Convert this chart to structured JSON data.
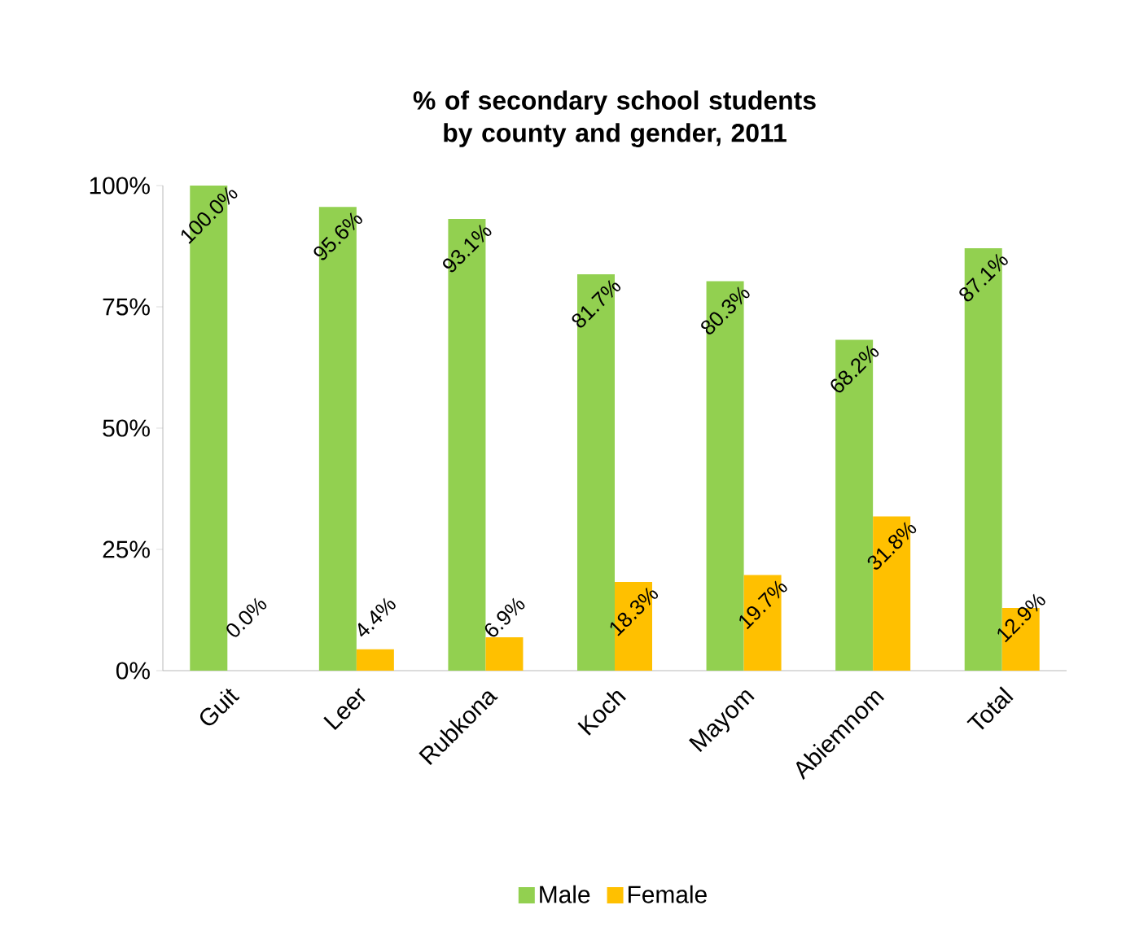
{
  "chart_data": {
    "type": "bar",
    "title": "% of secondary school students by county and gender, 2011",
    "categories": [
      "Guit",
      "Leer",
      "Rubkona",
      "Koch",
      "Mayom",
      "Abiemnom",
      "Total"
    ],
    "series": [
      {
        "name": "Male",
        "color": "#92d050",
        "values": [
          100.0,
          95.6,
          93.1,
          81.7,
          80.3,
          68.2,
          87.1
        ],
        "value_labels": [
          "100.0%",
          "95.6%",
          "93.1%",
          "81.7%",
          "80.3%",
          "68.2%",
          "87.1%"
        ]
      },
      {
        "name": "Female",
        "color": "#ffc000",
        "values": [
          0.0,
          4.4,
          6.9,
          18.3,
          19.7,
          31.8,
          12.9
        ],
        "value_labels": [
          "0.0%",
          "4.4%",
          "6.9%",
          "18.3%",
          "19.7%",
          "31.8%",
          "12.9%"
        ]
      }
    ],
    "ylim": [
      0,
      100
    ],
    "yticks": [
      {
        "value": 0,
        "label": "0%"
      },
      {
        "value": 25,
        "label": "25%"
      },
      {
        "value": 50,
        "label": "50%"
      },
      {
        "value": 75,
        "label": "75%"
      },
      {
        "value": 100,
        "label": "100%"
      }
    ],
    "grid": false,
    "legend": "bottom"
  }
}
